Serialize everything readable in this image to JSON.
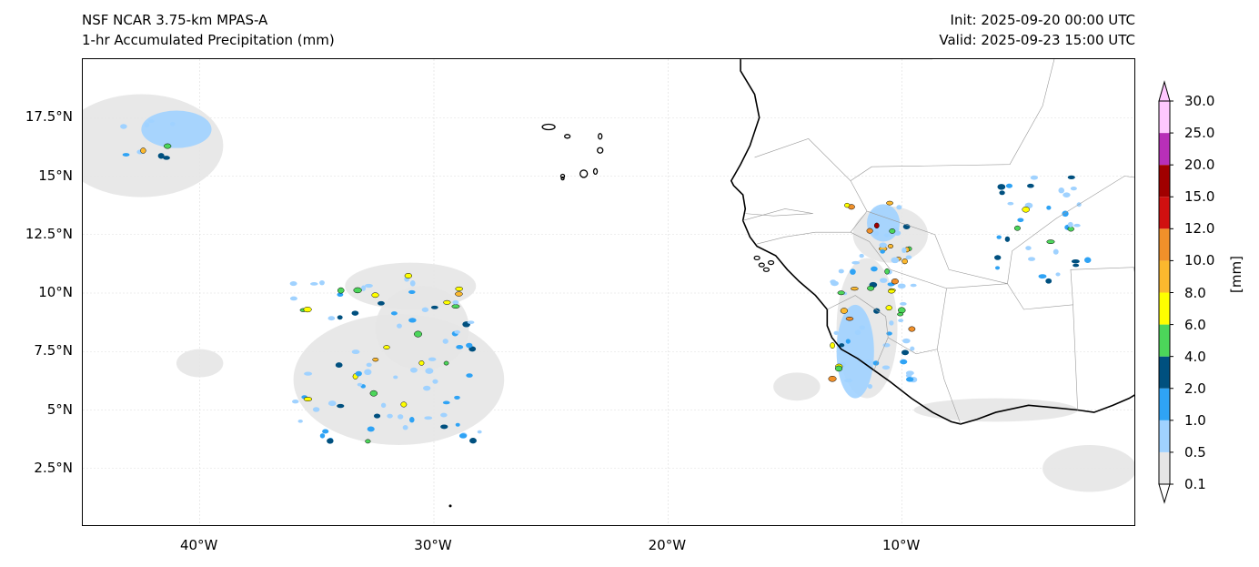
{
  "header": {
    "model": "NSF NCAR 3.75-km MPAS-A",
    "field": "1-hr Accumulated Precipitation (mm)",
    "init": "Init: 2025-09-20 00:00 UTC",
    "valid": "Valid: 2025-09-23 15:00 UTC"
  },
  "map": {
    "extent_lon": [
      -45,
      0
    ],
    "extent_lat": [
      0,
      20
    ],
    "lat_labels": [
      {
        "value": 17.5,
        "label": "17.5°N"
      },
      {
        "value": 15,
        "label": "15°N"
      },
      {
        "value": 12.5,
        "label": "12.5°N"
      },
      {
        "value": 10,
        "label": "10°N"
      },
      {
        "value": 7.5,
        "label": "7.5°N"
      },
      {
        "value": 5,
        "label": "5°N"
      },
      {
        "value": 2.5,
        "label": "2.5°N"
      }
    ],
    "lon_labels": [
      {
        "value": -40,
        "label": "40°W"
      },
      {
        "value": -30,
        "label": "30°W"
      },
      {
        "value": -20,
        "label": "20°W"
      },
      {
        "value": -10,
        "label": "10°W"
      }
    ]
  },
  "colorbar": {
    "unit": "[mm]",
    "levels": [
      "0.1",
      "0.5",
      "1.0",
      "2.0",
      "4.0",
      "6.0",
      "8.0",
      "10.0",
      "12.0",
      "15.0",
      "20.0",
      "25.0",
      "30.0"
    ],
    "colors": [
      "#e6e6e6",
      "#a0d2ff",
      "#2fa3f5",
      "#00507f",
      "#4cd65a",
      "#ffff00",
      "#fbb82e",
      "#f0902a",
      "#d01010",
      "#a00000",
      "#b82fb8",
      "#ffc8ff"
    ],
    "extend_top_color": "#ffc8ff",
    "extend_bottom_color": "#ffffff"
  }
}
